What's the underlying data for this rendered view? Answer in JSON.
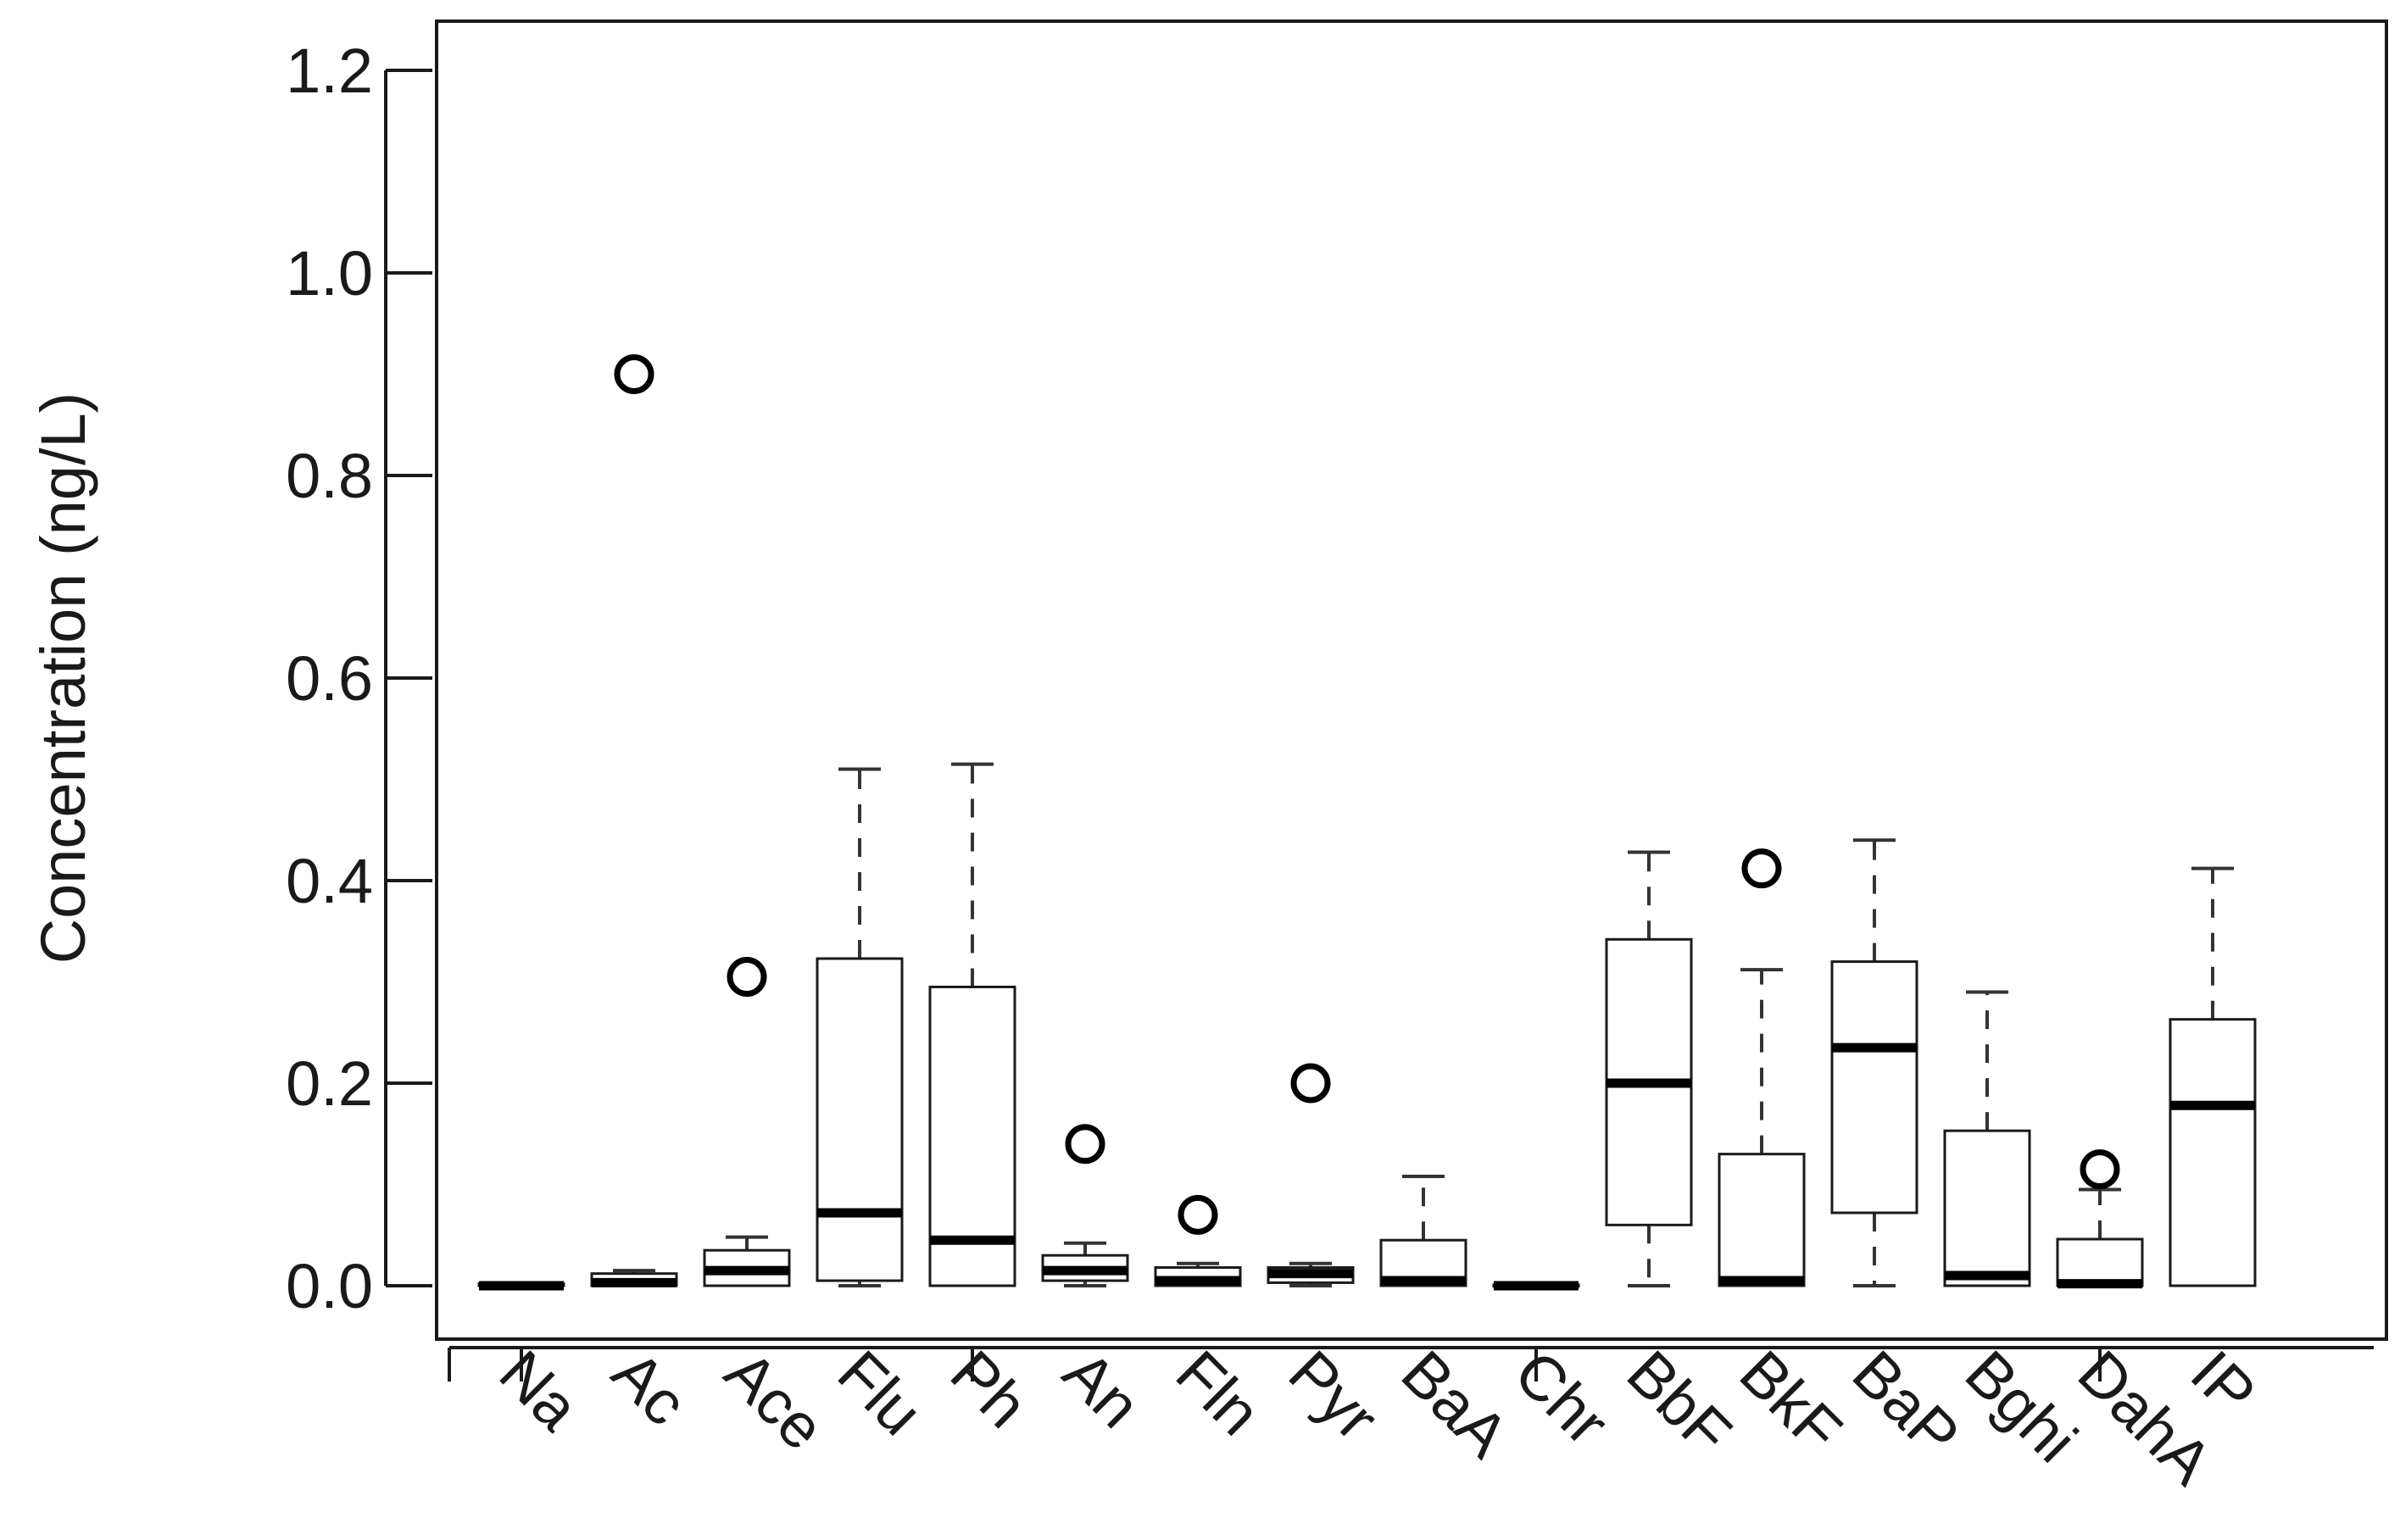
{
  "chart_data": {
    "type": "box",
    "ylabel": "Concentration (ng/L)",
    "xlabel": "",
    "ylim": [
      0,
      1.2
    ],
    "y_ticks": [
      "0.0",
      "0.2",
      "0.4",
      "0.6",
      "0.8",
      "1.0",
      "1.2"
    ],
    "y_tick_values": [
      0,
      0.2,
      0.4,
      0.6,
      0.8,
      1.0,
      1.2
    ],
    "x_ticks_marked": [
      "Na",
      "Ph",
      "Chr",
      "DahA"
    ],
    "categories": [
      "Na",
      "Ac",
      "Ace",
      "Flu",
      "Ph",
      "An",
      "Fln",
      "Pyr",
      "BaA",
      "Chr",
      "BbF",
      "BkF",
      "BaP",
      "Bghi",
      "DahA",
      "IP"
    ],
    "boxes": [
      {
        "category": "Na",
        "min": 0.0,
        "q1": 0.0,
        "median": 0.0,
        "q3": 0.002,
        "max": 0.002,
        "outliers": []
      },
      {
        "category": "Ac",
        "min": 0.0,
        "q1": 0.0,
        "median": 0.003,
        "q3": 0.012,
        "max": 0.015,
        "outliers": [
          0.9
        ]
      },
      {
        "category": "Ace",
        "min": 0.0,
        "q1": 0.0,
        "median": 0.015,
        "q3": 0.035,
        "max": 0.048,
        "outliers": [
          0.305
        ]
      },
      {
        "category": "Flu",
        "min": 0.0,
        "q1": 0.005,
        "median": 0.072,
        "q3": 0.323,
        "max": 0.51,
        "outliers": []
      },
      {
        "category": "Ph",
        "min": 0.0,
        "q1": 0.0,
        "median": 0.045,
        "q3": 0.295,
        "max": 0.515,
        "outliers": []
      },
      {
        "category": "An",
        "min": 0.0,
        "q1": 0.005,
        "median": 0.015,
        "q3": 0.03,
        "max": 0.042,
        "outliers": [
          0.14
        ]
      },
      {
        "category": "Fln",
        "min": 0.0,
        "q1": 0.0,
        "median": 0.005,
        "q3": 0.018,
        "max": 0.022,
        "outliers": [
          0.07
        ]
      },
      {
        "category": "Pyr",
        "min": 0.0,
        "q1": 0.003,
        "median": 0.012,
        "q3": 0.018,
        "max": 0.022,
        "outliers": [
          0.2
        ]
      },
      {
        "category": "BaA",
        "min": 0.0,
        "q1": 0.0,
        "median": 0.005,
        "q3": 0.045,
        "max": 0.108,
        "outliers": []
      },
      {
        "category": "Chr",
        "min": 0.0,
        "q1": 0.0,
        "median": 0.0,
        "q3": 0.001,
        "max": 0.001,
        "outliers": []
      },
      {
        "category": "BbF",
        "min": 0.0,
        "q1": 0.06,
        "median": 0.2,
        "q3": 0.342,
        "max": 0.428,
        "outliers": []
      },
      {
        "category": "BkF",
        "min": 0.0,
        "q1": 0.0,
        "median": 0.005,
        "q3": 0.13,
        "max": 0.312,
        "outliers": [
          0.412
        ]
      },
      {
        "category": "BaP",
        "min": 0.0,
        "q1": 0.072,
        "median": 0.235,
        "q3": 0.32,
        "max": 0.44,
        "outliers": []
      },
      {
        "category": "Bghi",
        "min": 0.0,
        "q1": 0.0,
        "median": 0.01,
        "q3": 0.153,
        "max": 0.29,
        "outliers": []
      },
      {
        "category": "DahA",
        "min": 0.0,
        "q1": 0.0,
        "median": 0.002,
        "q3": 0.046,
        "max": 0.095,
        "outliers": [
          0.115
        ]
      },
      {
        "category": "IP",
        "min": 0.0,
        "q1": 0.0,
        "median": 0.178,
        "q3": 0.263,
        "max": 0.412,
        "outliers": []
      }
    ]
  }
}
